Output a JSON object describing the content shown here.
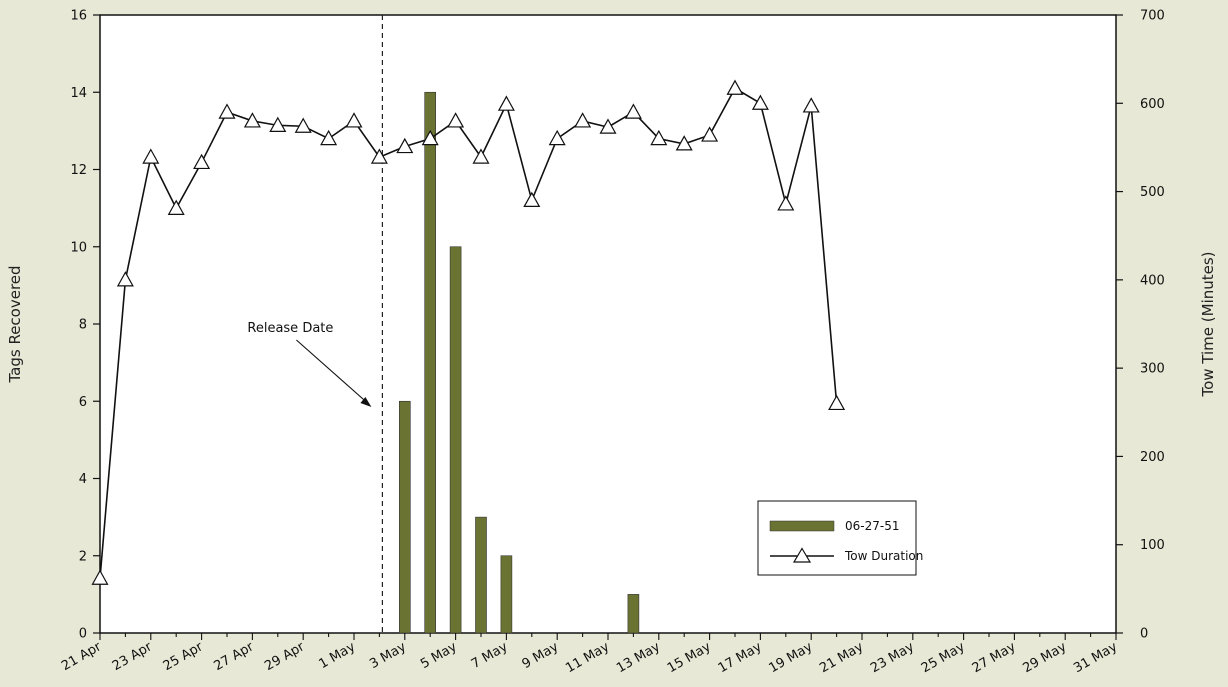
{
  "chart_data": {
    "type": "bar+line",
    "xlabel": "",
    "ylabel_left": "Tags Recovered",
    "ylabel_right": "Tow Time (Minutes)",
    "ylim_left": [
      0,
      16
    ],
    "yticks_left": [
      "0",
      "2",
      "4",
      "6",
      "8",
      "10",
      "12",
      "14",
      "16"
    ],
    "ylim_right": [
      0,
      700
    ],
    "yticks_right": [
      "0",
      "100",
      "200",
      "300",
      "400",
      "500",
      "600",
      "700"
    ],
    "x_ticks": [
      "21 Apr",
      "23 Apr",
      "25 Apr",
      "27 Apr",
      "29 Apr",
      "1 May",
      "3 May",
      "5 May",
      "7 May",
      "9 May",
      "11 May",
      "13 May",
      "15 May",
      "17 May",
      "19 May",
      "21 May",
      "23 May",
      "25 May",
      "27 May",
      "29 May",
      "31 May"
    ],
    "x_range": [
      "21 Apr",
      "31 May"
    ],
    "grid": false,
    "legend_position": "lower-right",
    "annotations": [
      {
        "text": "Release Date",
        "date": "2 May",
        "style": "dashed-vertical-line-with-arrow"
      }
    ],
    "series": [
      {
        "name": "06-27-51",
        "type": "bar",
        "axis": "left",
        "color": "#6b7332",
        "points": [
          {
            "x": "3 May",
            "y": 6
          },
          {
            "x": "4 May",
            "y": 14
          },
          {
            "x": "5 May",
            "y": 10
          },
          {
            "x": "6 May",
            "y": 3
          },
          {
            "x": "7 May",
            "y": 2
          },
          {
            "x": "12 May",
            "y": 1
          }
        ]
      },
      {
        "name": "Tow Duration",
        "type": "line",
        "axis": "right",
        "marker": "open-triangle",
        "color": "#111111",
        "points": [
          {
            "x": "21 Apr",
            "y": 62
          },
          {
            "x": "22 Apr",
            "y": 400
          },
          {
            "x": "23 Apr",
            "y": 539
          },
          {
            "x": "24 Apr",
            "y": 481
          },
          {
            "x": "25 Apr",
            "y": 533
          },
          {
            "x": "26 Apr",
            "y": 590
          },
          {
            "x": "27 Apr",
            "y": 580
          },
          {
            "x": "28 Apr",
            "y": 575
          },
          {
            "x": "29 Apr",
            "y": 574
          },
          {
            "x": "30 Apr",
            "y": 560
          },
          {
            "x": "1 May",
            "y": 580
          },
          {
            "x": "2 May",
            "y": 539
          },
          {
            "x": "3 May",
            "y": 551
          },
          {
            "x": "4 May",
            "y": 560
          },
          {
            "x": "5 May",
            "y": 580
          },
          {
            "x": "6 May",
            "y": 539
          },
          {
            "x": "7 May",
            "y": 599
          },
          {
            "x": "8 May",
            "y": 490
          },
          {
            "x": "9 May",
            "y": 560
          },
          {
            "x": "10 May",
            "y": 580
          },
          {
            "x": "11 May",
            "y": 573
          },
          {
            "x": "12 May",
            "y": 590
          },
          {
            "x": "13 May",
            "y": 560
          },
          {
            "x": "14 May",
            "y": 554
          },
          {
            "x": "15 May",
            "y": 564
          },
          {
            "x": "16 May",
            "y": 617
          },
          {
            "x": "17 May",
            "y": 600
          },
          {
            "x": "18 May",
            "y": 486
          },
          {
            "x": "19 May",
            "y": 597
          },
          {
            "x": "20 May",
            "y": 260
          }
        ]
      }
    ]
  }
}
